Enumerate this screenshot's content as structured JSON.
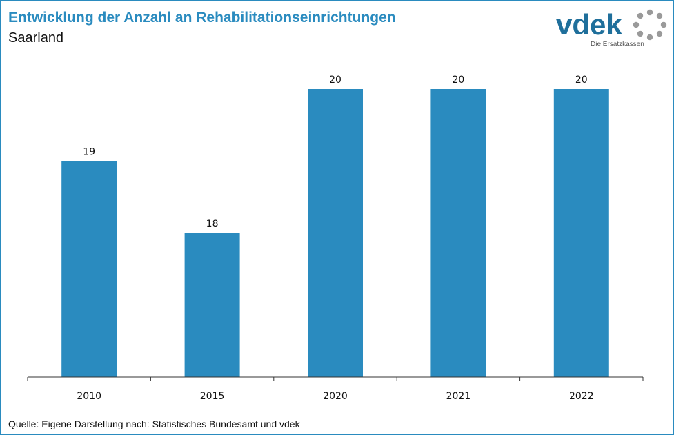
{
  "header": {
    "title": "Entwicklung der Anzahl an Rehabilitationseinrichtungen",
    "subtitle": "Saarland"
  },
  "logo": {
    "wordmark": "vdek",
    "tagline": "Die Ersatzkassen",
    "color": "#1f6f9b",
    "ring_color": "#9a9a9a"
  },
  "footer": {
    "source": "Quelle: Eigene Darstellung nach: Statistisches Bundesamt und vdek"
  },
  "colors": {
    "bar": "#2a8bbf",
    "title": "#2a8bbf",
    "axis": "#333333"
  },
  "chart_data": {
    "type": "bar",
    "categories": [
      "2010",
      "2015",
      "2020",
      "2021",
      "2022"
    ],
    "values": [
      19,
      18,
      20,
      20,
      20
    ],
    "data_labels": [
      "19",
      "18",
      "20",
      "20",
      "20"
    ],
    "title": "Entwicklung der Anzahl an Rehabilitationseinrichtungen",
    "subtitle": "Saarland",
    "xlabel": "",
    "ylabel": "",
    "ylim": [
      16,
      20
    ],
    "grid": false,
    "legend": "none"
  }
}
